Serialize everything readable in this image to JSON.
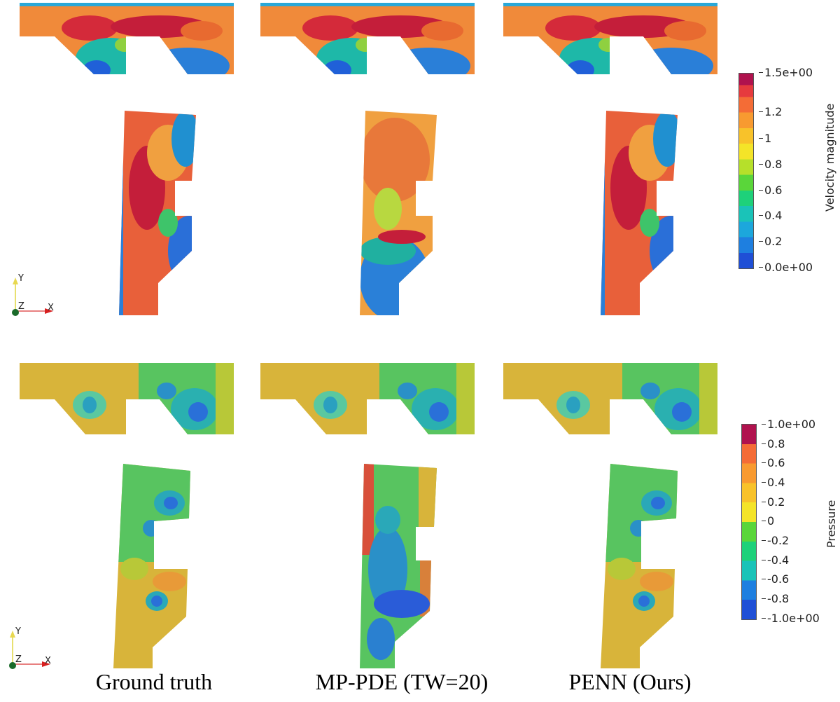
{
  "columns": [
    {
      "label": "Ground truth"
    },
    {
      "label": "MP-PDE (TW=20)"
    },
    {
      "label": "PENN (Ours)"
    }
  ],
  "colorbars": {
    "velocity": {
      "title": "Velocity magnitude",
      "ticks": [
        "1.5e+00",
        "1.2",
        "1",
        "0.8",
        "0.6",
        "0.4",
        "0.2",
        "0.0e+00"
      ]
    },
    "pressure": {
      "title": "Pressure",
      "ticks": [
        "1.0e+00",
        "0.8",
        "0.6",
        "0.4",
        "0.2",
        "0",
        "-0.2",
        "-0.4",
        "-0.6",
        "-0.8",
        "-1.0e+00"
      ]
    }
  },
  "axes": {
    "y_label": "Y",
    "z_label": "Z",
    "x_label": "X"
  },
  "colors": {
    "red": "#e63a3e",
    "orange": "#f89a30",
    "yellow": "#f4e428",
    "green": "#3fcf55",
    "cyan": "#1ac3b8",
    "blue": "#1f4fd6"
  }
}
